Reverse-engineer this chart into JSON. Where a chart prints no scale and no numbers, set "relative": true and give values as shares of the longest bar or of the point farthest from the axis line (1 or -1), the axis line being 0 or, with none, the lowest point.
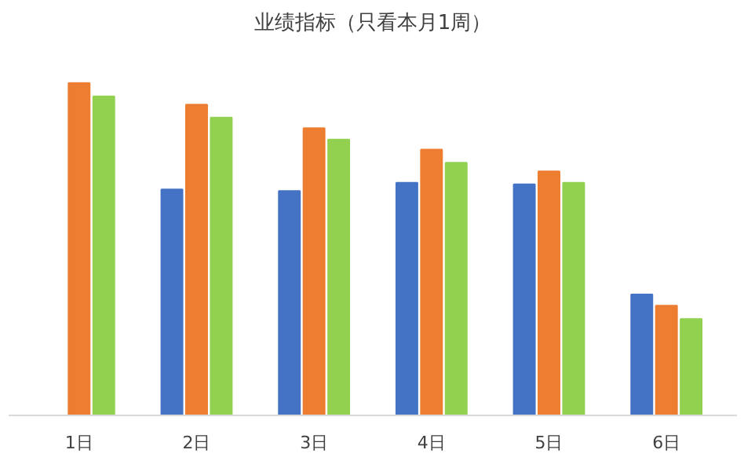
{
  "chart_data": {
    "type": "bar",
    "title": "业绩指标（只看本月1周）",
    "relative": true,
    "categories": [
      "1日",
      "2日",
      "3日",
      "4日",
      "5日",
      "6日"
    ],
    "series": [
      {
        "color": "#4472c4",
        "values": [
          null,
          0.68,
          0.675,
          0.7,
          0.695,
          0.364
        ]
      },
      {
        "color": "#ed7d31",
        "values": [
          1,
          0.935,
          0.864,
          0.8,
          0.734,
          0.33
        ]
      },
      {
        "color": "#92d050",
        "values": [
          0.96,
          0.896,
          0.83,
          0.76,
          0.7,
          0.29
        ]
      }
    ],
    "grid": false
  }
}
